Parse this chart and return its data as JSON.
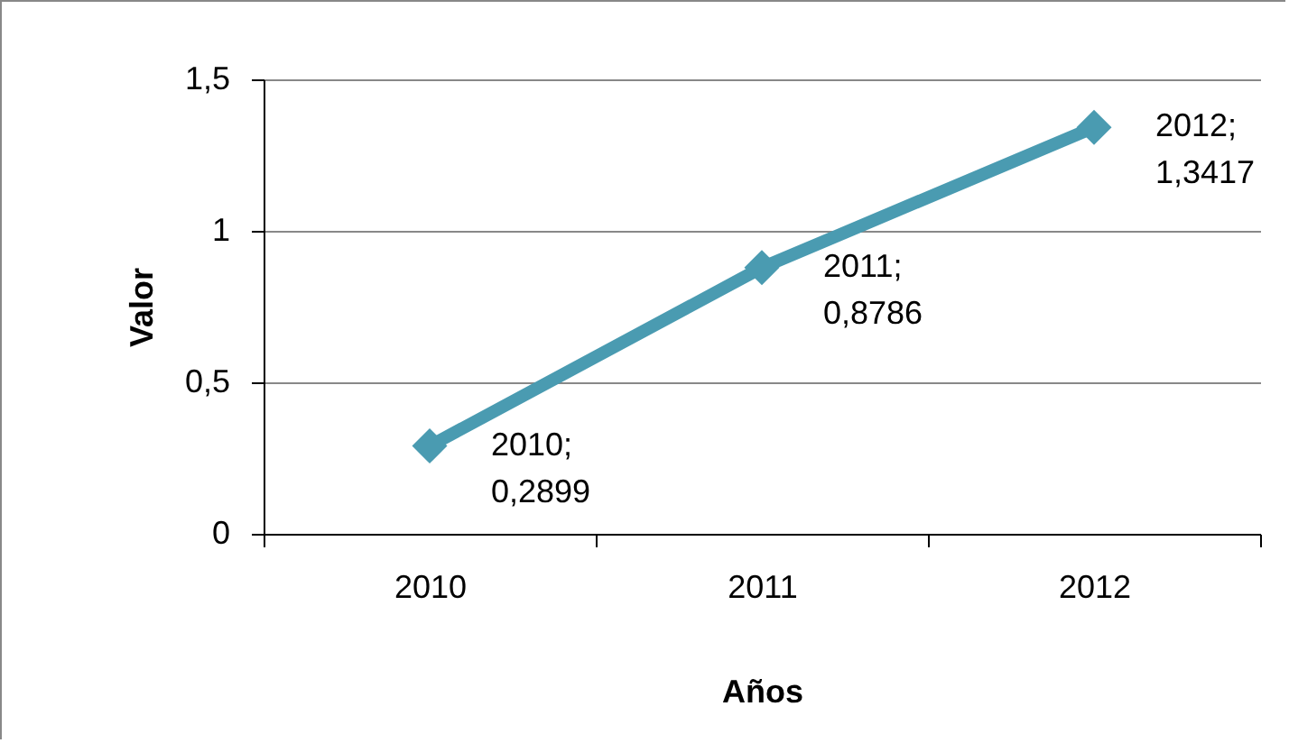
{
  "chart_data": {
    "type": "line",
    "xlabel": "Años",
    "ylabel": "Valor",
    "categories": [
      "2010",
      "2011",
      "2012"
    ],
    "series": [
      {
        "color": "#4a9bb1",
        "values": [
          0.2899,
          0.8786,
          1.3417
        ],
        "value_labels": [
          "2010;\n0,2899",
          "2011;\n0,8786",
          "2012;\n1,3417"
        ]
      }
    ],
    "ylim": [
      0,
      1.5
    ],
    "yticks": [
      0,
      {
        "value": 0.5,
        "label": "0,5"
      },
      1,
      {
        "value": 1.5,
        "label": "1,5"
      }
    ],
    "grid": "y",
    "marker": "diamond"
  }
}
